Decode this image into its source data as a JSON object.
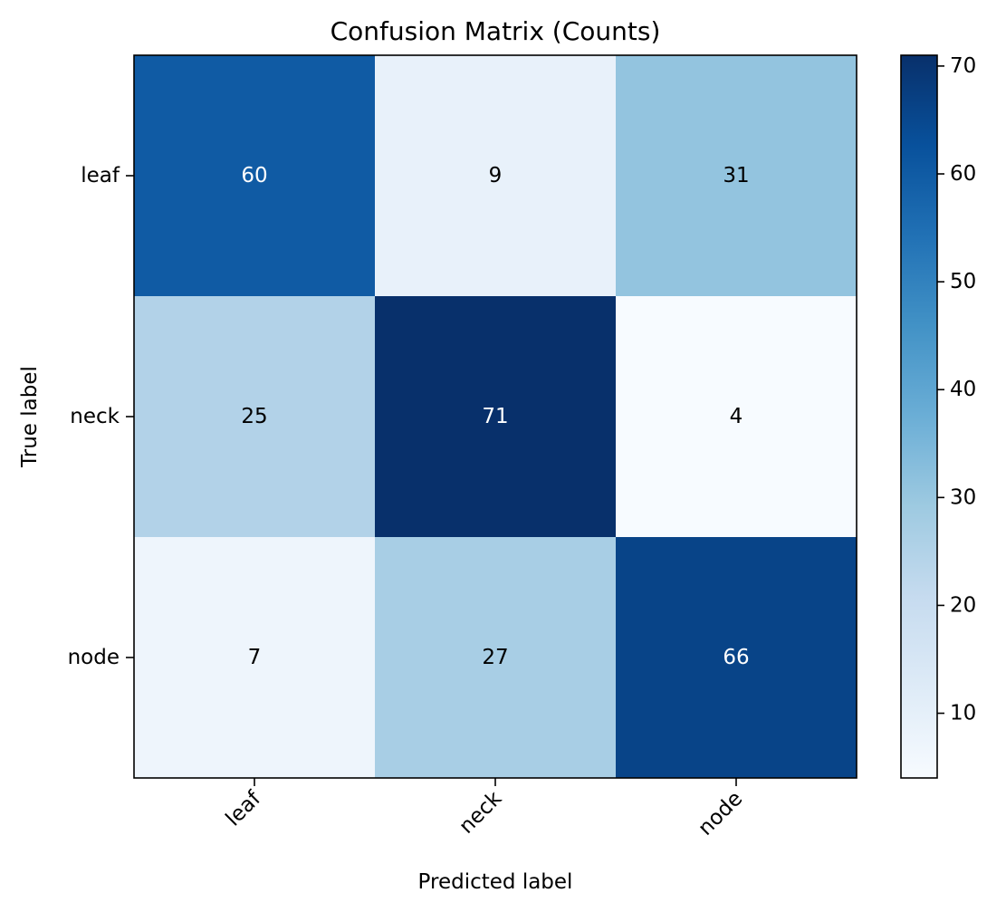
{
  "chart_data": {
    "type": "heatmap",
    "title": "Confusion Matrix (Counts)",
    "xlabel": "Predicted label",
    "ylabel": "True label",
    "x_categories": [
      "leaf",
      "neck",
      "node"
    ],
    "y_categories": [
      "leaf",
      "neck",
      "node"
    ],
    "values": [
      [
        60,
        9,
        31
      ],
      [
        25,
        71,
        4
      ],
      [
        7,
        27,
        66
      ]
    ],
    "colormap": "Blues",
    "colorbar": {
      "min": 4,
      "max": 71,
      "ticks": [
        10,
        20,
        30,
        40,
        50,
        60,
        70
      ]
    },
    "grid": false
  }
}
